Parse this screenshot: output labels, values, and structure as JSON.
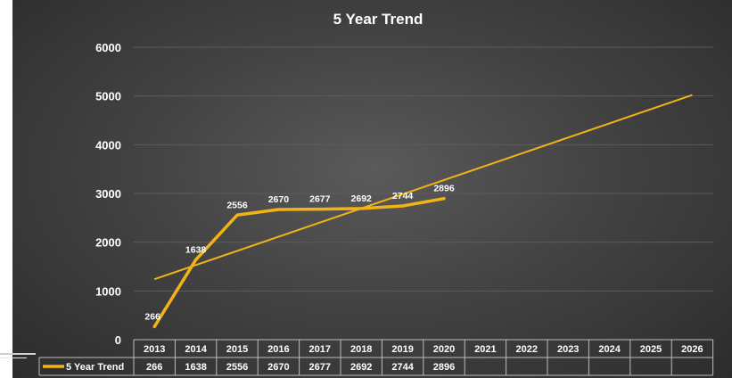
{
  "chart_data": {
    "type": "line",
    "title": "5 Year Trend",
    "categories": [
      "2013",
      "2014",
      "2015",
      "2016",
      "2017",
      "2018",
      "2019",
      "2020",
      "2021",
      "2022",
      "2023",
      "2024",
      "2025",
      "2026"
    ],
    "series": [
      {
        "name": "5 Year Trend",
        "values": [
          266,
          1638,
          2556,
          2670,
          2677,
          2692,
          2744,
          2896,
          null,
          null,
          null,
          null,
          null,
          null
        ]
      }
    ],
    "trendline": {
      "type": "linear",
      "start_value": 1240,
      "end_value": 5020
    },
    "y_ticks": [
      0,
      1000,
      2000,
      3000,
      4000,
      5000,
      6000
    ],
    "ylim": [
      0,
      6000
    ],
    "grid": true,
    "data_table": true,
    "colors": {
      "series": "#f2b316",
      "trend": "#f2b316",
      "text": "#ffffff",
      "grid": "#5c5c5c",
      "table_border": "#bdbdbd"
    }
  }
}
